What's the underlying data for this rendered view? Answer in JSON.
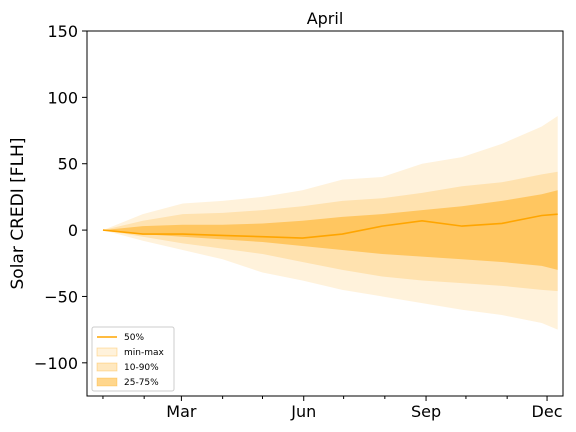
{
  "chart_data": {
    "type": "area",
    "title": "April",
    "xlabel": "",
    "ylabel": "Solar CREDI [FLH]",
    "ylim": [
      -125,
      150
    ],
    "yticks": [
      -100,
      -50,
      0,
      50,
      100,
      150
    ],
    "yticklabels": [
      "−100",
      "−50",
      "0",
      "50",
      "100",
      "150"
    ],
    "xlim_days": [
      -12,
      346
    ],
    "x_major_ticks": [
      {
        "day": 59,
        "label": "Mar"
      },
      {
        "day": 151,
        "label": "Jun"
      },
      {
        "day": 243,
        "label": "Sep"
      },
      {
        "day": 334,
        "label": "Dec"
      }
    ],
    "x_minor_ticks_days": [
      0,
      31,
      90,
      120,
      181,
      212,
      273,
      304
    ],
    "grid": false,
    "legend_position": "lower-left",
    "colors": {
      "median": "#ffa500",
      "minmax": "#ffa500",
      "p10_90": "#ffa500",
      "p25_75": "#ffa500"
    },
    "x_days": [
      0,
      30,
      60,
      90,
      120,
      150,
      180,
      210,
      240,
      270,
      300,
      330,
      342
    ],
    "series": [
      {
        "name": "50%",
        "role": "median",
        "values": [
          0,
          -3,
          -3,
          -4,
          -5,
          -6,
          -3,
          3,
          7,
          3,
          5,
          11,
          12
        ]
      },
      {
        "name": "min-max",
        "role": "band",
        "lower": [
          0,
          -8,
          -15,
          -22,
          -32,
          -38,
          -45,
          -50,
          -55,
          -60,
          -64,
          -70,
          -75
        ],
        "upper": [
          0,
          12,
          20,
          22,
          25,
          30,
          38,
          40,
          50,
          55,
          65,
          78,
          86
        ]
      },
      {
        "name": "10-90%",
        "role": "band",
        "lower": [
          0,
          -5,
          -10,
          -14,
          -18,
          -24,
          -30,
          -35,
          -38,
          -40,
          -42,
          -45,
          -46
        ],
        "upper": [
          0,
          7,
          12,
          13,
          15,
          18,
          22,
          24,
          28,
          33,
          36,
          42,
          44
        ]
      },
      {
        "name": "25-75%",
        "role": "band",
        "lower": [
          0,
          -3,
          -5,
          -7,
          -9,
          -12,
          -15,
          -18,
          -20,
          -22,
          -24,
          -27,
          -30
        ],
        "upper": [
          0,
          3,
          4,
          4,
          5,
          7,
          10,
          12,
          15,
          18,
          22,
          27,
          30
        ]
      }
    ]
  }
}
